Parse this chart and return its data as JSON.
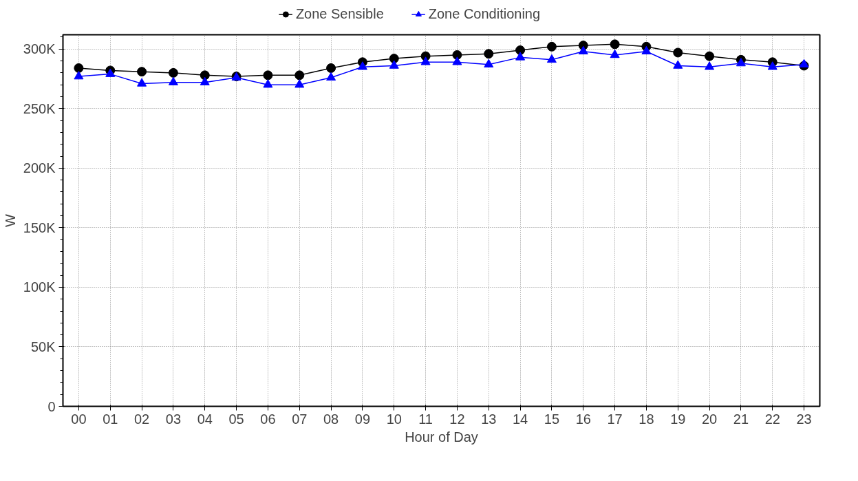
{
  "chart_data": {
    "type": "line",
    "xlabel": "Hour of Day",
    "ylabel": "W",
    "categories": [
      "00",
      "01",
      "02",
      "03",
      "04",
      "05",
      "06",
      "07",
      "08",
      "09",
      "10",
      "11",
      "12",
      "13",
      "14",
      "15",
      "16",
      "17",
      "18",
      "19",
      "20",
      "21",
      "22",
      "23"
    ],
    "series": [
      {
        "name": "Zone Sensible",
        "color": "#000000",
        "marker": "circle",
        "values": [
          284000,
          282000,
          281000,
          280000,
          278000,
          277000,
          278000,
          278000,
          284000,
          289000,
          292000,
          294000,
          295000,
          296000,
          299000,
          302000,
          303000,
          304000,
          302000,
          297000,
          294000,
          291000,
          289000,
          286000
        ]
      },
      {
        "name": "Zone Conditioning",
        "color": "#0000ff",
        "marker": "triangle",
        "values": [
          277000,
          279000,
          271000,
          272000,
          272000,
          276000,
          270000,
          270000,
          276000,
          285000,
          286000,
          289000,
          289000,
          287000,
          293000,
          291000,
          298000,
          295000,
          298000,
          286000,
          285000,
          288000,
          285000,
          287000
        ]
      }
    ],
    "ylim": [
      0,
      312000
    ],
    "yticks": [
      {
        "value": 0,
        "label": "0"
      },
      {
        "value": 50000,
        "label": "50K"
      },
      {
        "value": 100000,
        "label": "100K"
      },
      {
        "value": 150000,
        "label": "150K"
      },
      {
        "value": 200000,
        "label": "200K"
      },
      {
        "value": 250000,
        "label": "250K"
      },
      {
        "value": 300000,
        "label": "300K"
      }
    ],
    "grid": true,
    "legend": "top",
    "line_style": "solid"
  }
}
